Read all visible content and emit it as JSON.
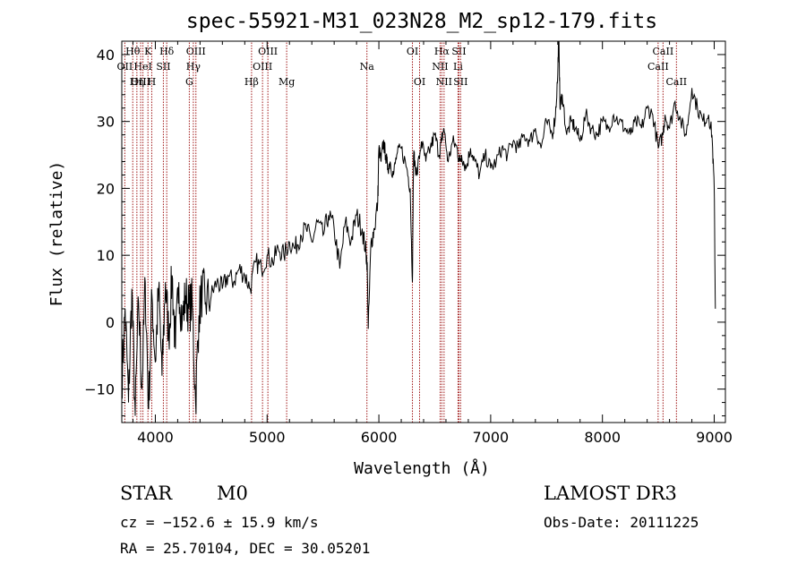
{
  "chart_data": {
    "type": "line",
    "title": "spec-55921-M31_023N28_M2_sp12-179.fits",
    "xlabel": "Wavelength (Å)",
    "ylabel": "Flux (relative)",
    "xlim": [
      3700,
      9100
    ],
    "ylim": [
      -15,
      42
    ],
    "xticks": [
      4000,
      5000,
      6000,
      7000,
      8000,
      9000
    ],
    "yticks": [
      -10,
      0,
      10,
      20,
      30,
      40
    ],
    "xtick_labels": [
      "4000",
      "5000",
      "6000",
      "7000",
      "8000",
      "9000"
    ],
    "ytick_labels": [
      "−10",
      "0",
      "10",
      "20",
      "30",
      "40"
    ],
    "spectrum": {
      "name": "flux",
      "x": [
        3700,
        3730,
        3760,
        3790,
        3820,
        3850,
        3880,
        3910,
        3940,
        3970,
        4000,
        4030,
        4060,
        4090,
        4120,
        4150,
        4180,
        4210,
        4240,
        4270,
        4300,
        4330,
        4360,
        4390,
        4420,
        4450,
        4500,
        4550,
        4600,
        4650,
        4700,
        4750,
        4800,
        4850,
        4900,
        4950,
        5000,
        5050,
        5100,
        5150,
        5200,
        5250,
        5300,
        5350,
        5400,
        5450,
        5500,
        5550,
        5600,
        5650,
        5700,
        5750,
        5800,
        5850,
        5880,
        5895,
        5905,
        5930,
        5960,
        5990,
        6000,
        6020,
        6040,
        6060,
        6080,
        6100,
        6130,
        6160,
        6200,
        6250,
        6280,
        6300,
        6310,
        6320,
        6340,
        6380,
        6420,
        6460,
        6500,
        6540,
        6560,
        6580,
        6620,
        6660,
        6700,
        6720,
        6740,
        6780,
        6820,
        6860,
        6900,
        6950,
        7000,
        7050,
        7100,
        7150,
        7200,
        7250,
        7300,
        7350,
        7400,
        7450,
        7500,
        7550,
        7580,
        7600,
        7610,
        7620,
        7640,
        7680,
        7720,
        7760,
        7800,
        7850,
        7900,
        7950,
        8000,
        8050,
        8100,
        8150,
        8200,
        8250,
        8300,
        8350,
        8400,
        8450,
        8500,
        8540,
        8560,
        8600,
        8650,
        8700,
        8750,
        8800,
        8850,
        8900,
        8950,
        8980,
        9000,
        9010
      ],
      "y": [
        -9,
        2,
        -12,
        5,
        -14,
        3,
        -10,
        6,
        -13,
        4,
        -6,
        5,
        -8,
        6,
        -2,
        7,
        -4,
        6,
        0,
        4,
        2,
        3,
        -12,
        1,
        5,
        3,
        4,
        6,
        5,
        7,
        6,
        8,
        7,
        5,
        9,
        8,
        10,
        9,
        11,
        10,
        12,
        11,
        13,
        14,
        12,
        15,
        13,
        16,
        14,
        8,
        15,
        12,
        16,
        14,
        11,
        9,
        -1,
        12,
        14,
        18,
        26,
        24,
        27,
        25,
        23,
        24,
        22,
        25,
        26,
        23,
        20,
        6,
        25,
        24,
        22,
        27,
        24,
        26,
        28,
        25,
        27,
        29,
        24,
        27,
        26,
        24,
        25,
        23,
        26,
        24,
        22,
        25,
        23,
        24,
        26,
        25,
        27,
        26,
        28,
        27,
        29,
        26,
        30,
        28,
        31,
        37,
        44,
        32,
        34,
        28,
        30,
        29,
        27,
        31,
        29,
        28,
        30,
        29,
        31,
        30,
        29,
        28,
        30,
        29,
        32,
        31,
        26,
        28,
        31,
        29,
        33,
        30,
        28,
        35,
        32,
        30,
        31,
        28,
        20,
        2
      ]
    },
    "lines": [
      {
        "label": "Hθ",
        "x": 3798,
        "row": 0
      },
      {
        "label": "K",
        "x": 3934,
        "row": 0
      },
      {
        "label": "Hδ",
        "x": 4102,
        "row": 0
      },
      {
        "label": "OIII",
        "x": 4363,
        "row": 0
      },
      {
        "label": "OIII",
        "x": 5007,
        "row": 0
      },
      {
        "label": "OI",
        "x": 6300,
        "row": 0
      },
      {
        "label": "Hα",
        "x": 6563,
        "row": 0
      },
      {
        "label": "SII",
        "x": 6716,
        "row": 0
      },
      {
        "label": "CaII",
        "x": 8542,
        "row": 0
      },
      {
        "label": "OII",
        "x": 3727,
        "row": 1
      },
      {
        "label": "HeI",
        "x": 3889,
        "row": 1
      },
      {
        "label": "SII",
        "x": 4072,
        "row": 1
      },
      {
        "label": "Hγ",
        "x": 4340,
        "row": 1
      },
      {
        "label": "OIII",
        "x": 4959,
        "row": 1
      },
      {
        "label": "Na",
        "x": 5893,
        "row": 1
      },
      {
        "label": "NII",
        "x": 6548,
        "row": 1
      },
      {
        "label": "Li",
        "x": 6708,
        "row": 1
      },
      {
        "label": "CaII",
        "x": 8498,
        "row": 1
      },
      {
        "label": "OIII",
        "x": 3869,
        "row": 2
      },
      {
        "label": "Hη",
        "x": 3835,
        "row": 2
      },
      {
        "label": "H",
        "x": 3968,
        "row": 2
      },
      {
        "label": "G",
        "x": 4304,
        "row": 2
      },
      {
        "label": "Hβ",
        "x": 4861,
        "row": 2
      },
      {
        "label": "Mg",
        "x": 5175,
        "row": 2
      },
      {
        "label": "OI",
        "x": 6364,
        "row": 2
      },
      {
        "label": "NII",
        "x": 6583,
        "row": 2
      },
      {
        "label": "SII",
        "x": 6731,
        "row": 2
      },
      {
        "label": "CaII",
        "x": 8662,
        "row": 2
      }
    ]
  },
  "info": {
    "object_class": "STAR",
    "subclass": "M0",
    "survey": "LAMOST DR3",
    "cz": "cz = −152.6 ± 15.9 km/s",
    "obs_date": "Obs-Date: 20111225",
    "radec": "RA =  25.70104, DEC =  30.05201"
  },
  "colors": {
    "line_marker": "#a01818",
    "spectrum": "#000000"
  }
}
